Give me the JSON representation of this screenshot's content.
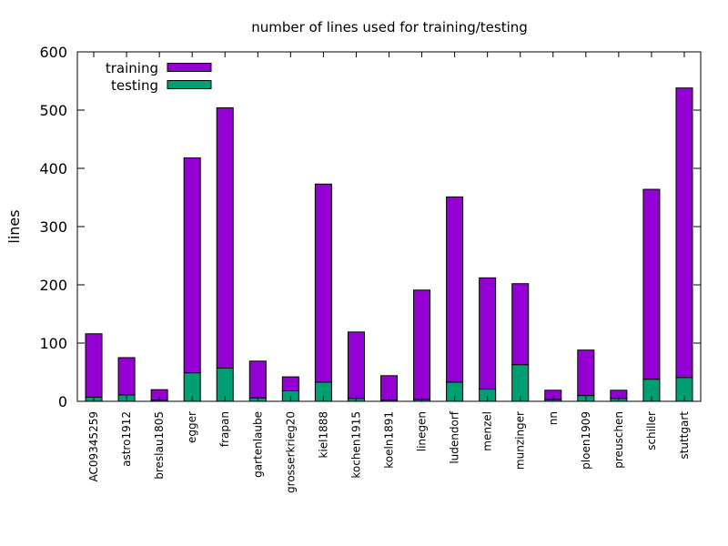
{
  "chart_data": {
    "type": "bar",
    "stacked": true,
    "title": "number of lines used for training/testing",
    "xlabel": "",
    "ylabel": "lines",
    "ylim": [
      0,
      600
    ],
    "yticks": [
      0,
      100,
      200,
      300,
      400,
      500,
      600
    ],
    "legend_position": "top-left",
    "grid": false,
    "categories": [
      "AC09345259",
      "astro1912",
      "breslau1805",
      "egger",
      "frapan",
      "gartenlaube",
      "grosserkrieg20",
      "kiel1888",
      "kochen1915",
      "koeln1891",
      "linegen",
      "ludendorf",
      "menzel",
      "munzinger",
      "nn",
      "ploen1909",
      "preuschen",
      "schiller",
      "stuttgart"
    ],
    "series": [
      {
        "name": "testing",
        "color": "#009e73",
        "values": [
          7,
          11,
          2,
          49,
          57,
          6,
          18,
          33,
          5,
          2,
          3,
          33,
          21,
          63,
          3,
          10,
          5,
          38,
          41
        ]
      },
      {
        "name": "training",
        "color": "#9400d3",
        "values": [
          109,
          64,
          18,
          369,
          447,
          63,
          24,
          340,
          114,
          42,
          188,
          318,
          191,
          139,
          16,
          78,
          14,
          326,
          497
        ]
      }
    ]
  }
}
